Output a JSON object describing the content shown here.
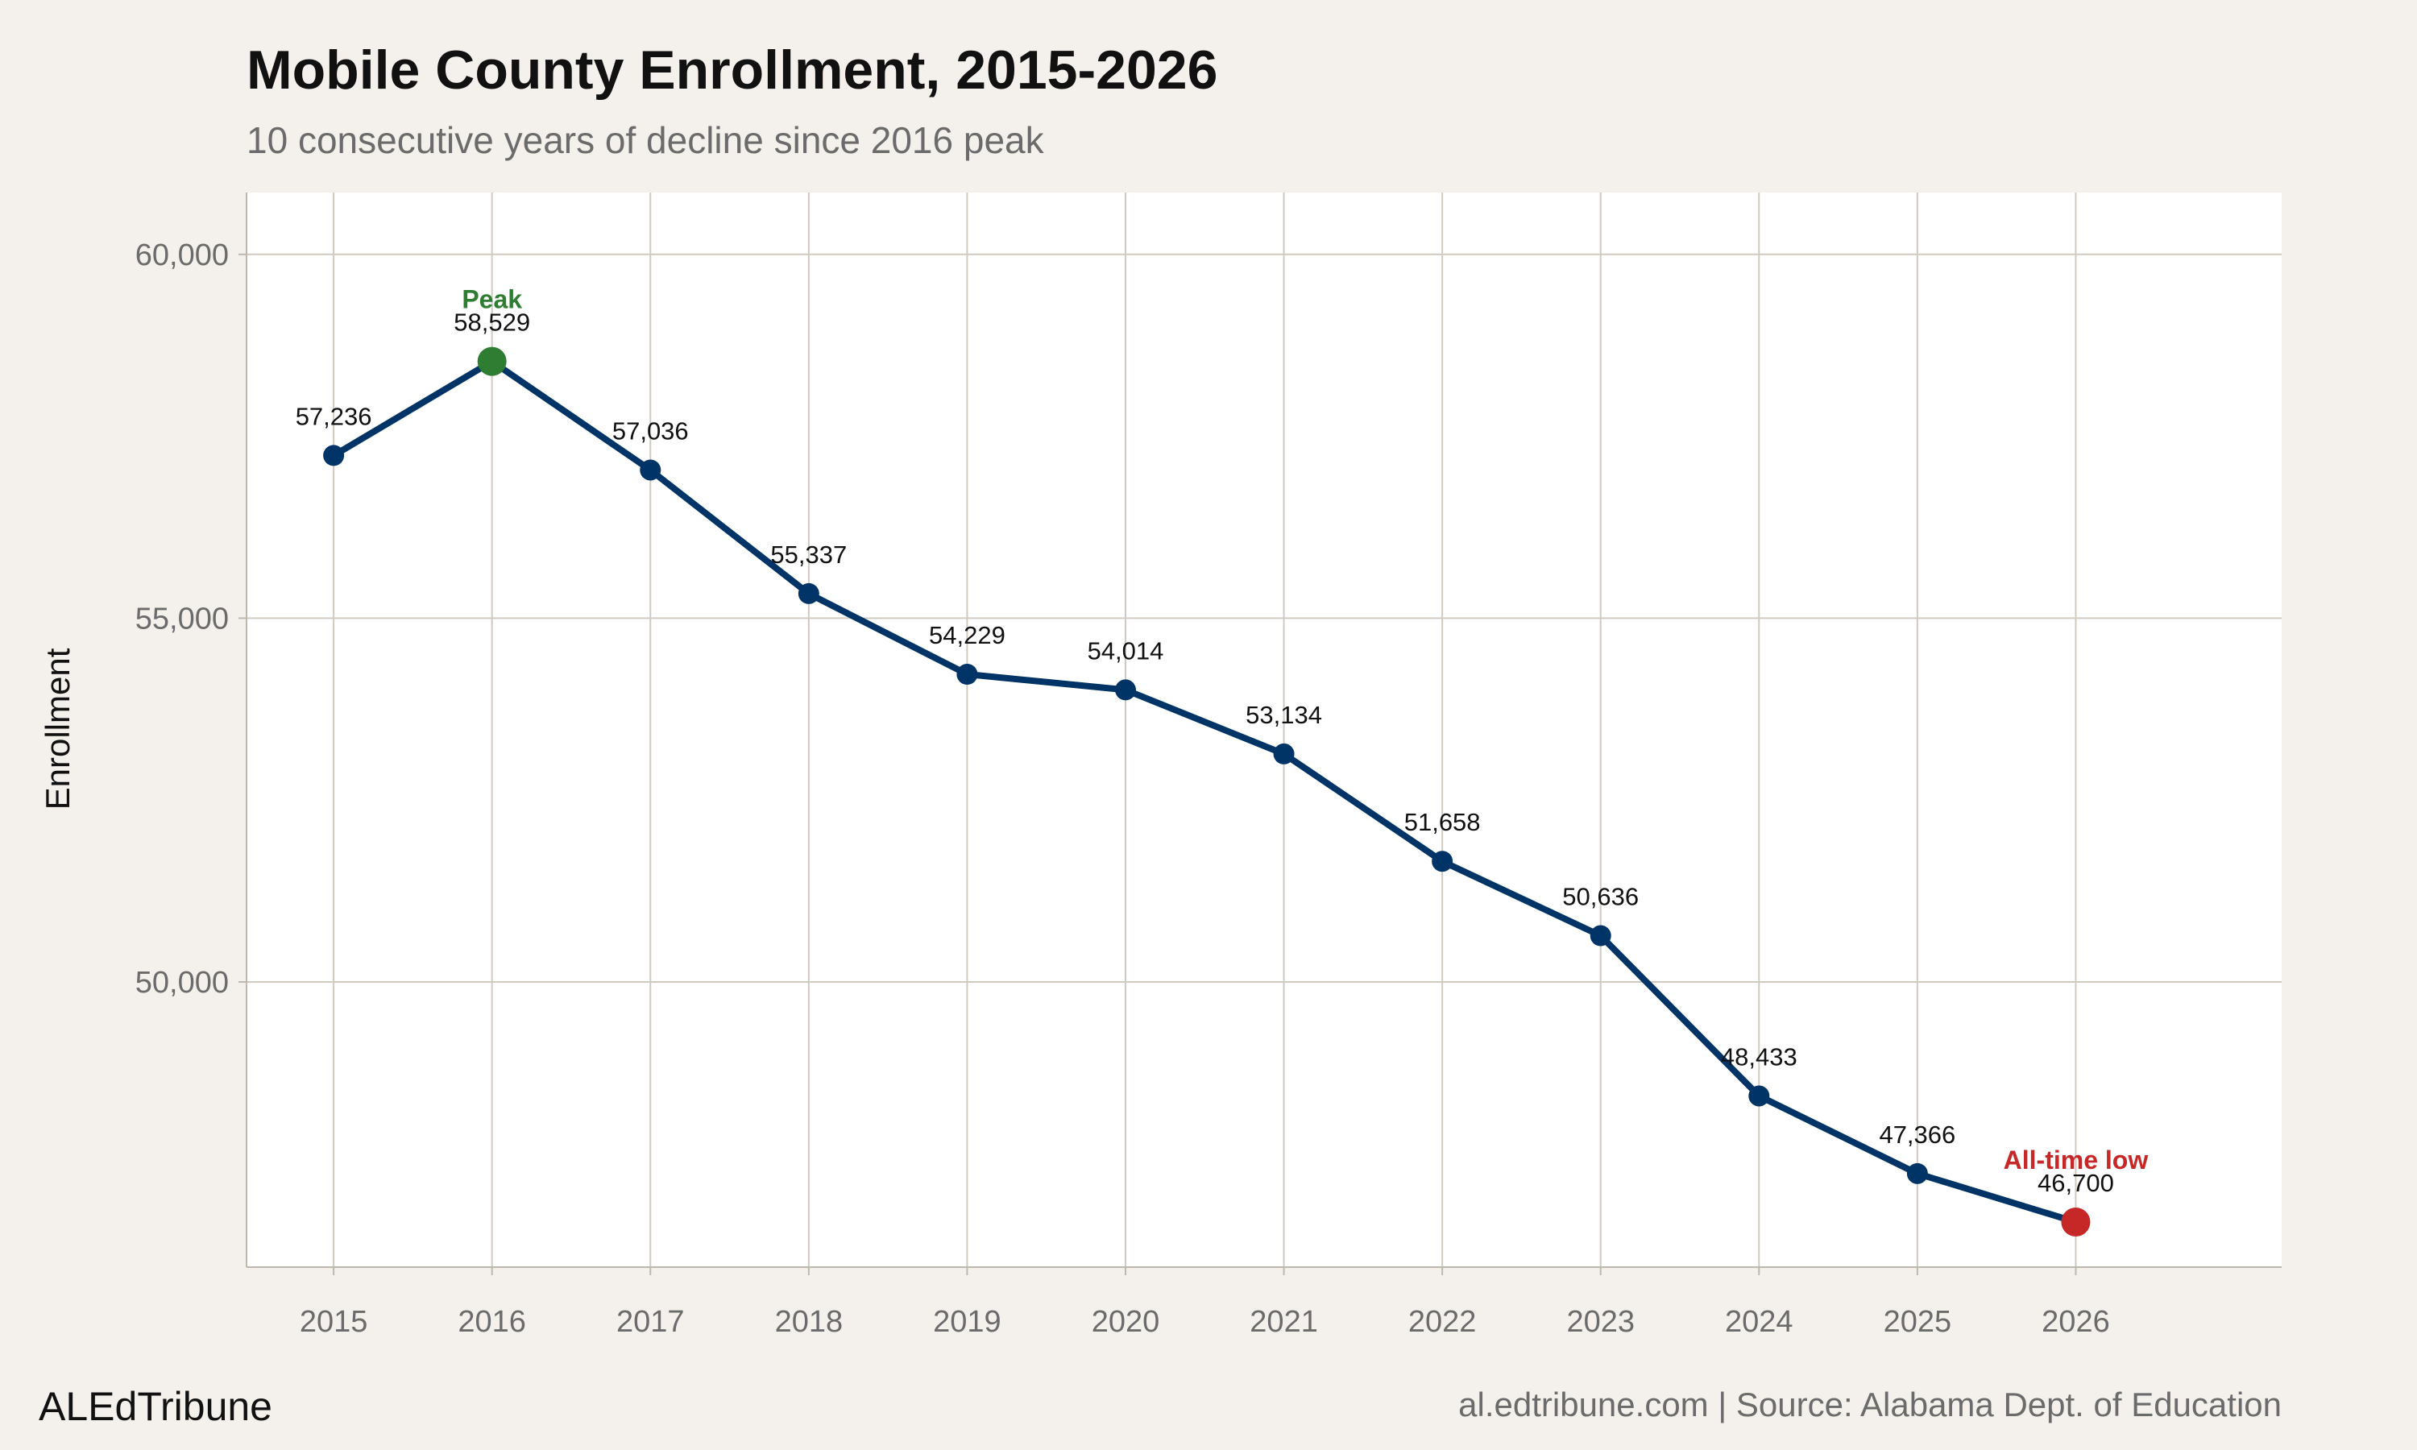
{
  "chart_data": {
    "type": "line",
    "title": "Mobile County Enrollment, 2015-2026",
    "subtitle": "10 consecutive years of decline since 2016 peak",
    "xlabel": "",
    "ylabel": "Enrollment",
    "x": [
      2015,
      2016,
      2017,
      2018,
      2019,
      2020,
      2021,
      2022,
      2023,
      2024,
      2025,
      2026
    ],
    "values": [
      57236,
      58529,
      57036,
      55337,
      54229,
      54014,
      53134,
      51658,
      50636,
      48433,
      47366,
      46700
    ],
    "data_labels": [
      "57,236",
      "58,529",
      "57,036",
      "55,337",
      "54,229",
      "54,014",
      "53,134",
      "51,658",
      "50,636",
      "48,433",
      "47,366",
      "46,700"
    ],
    "x_ticks": [
      "2015",
      "2016",
      "2017",
      "2018",
      "2019",
      "2020",
      "2021",
      "2022",
      "2023",
      "2024",
      "2025",
      "2026"
    ],
    "y_ticks": [
      50000,
      55000,
      60000
    ],
    "y_tick_labels": [
      "50,000",
      "55,000",
      "60,000"
    ],
    "ylim": [
      46080,
      60850
    ],
    "xlim": [
      2014.45,
      2027.3
    ],
    "grid": true,
    "annotations": [
      {
        "text": "Peak",
        "x": 2016,
        "color": "#2e7d32"
      },
      {
        "text": "All-time low",
        "x": 2026,
        "color": "#c62828"
      }
    ],
    "colors": {
      "line": "#003366",
      "peak": "#2e7d32",
      "low": "#c62828",
      "background": "#f4f1ec",
      "panel": "#ffffff",
      "grid": "#cfc9c0"
    }
  },
  "footer": {
    "brand": "ALEdTribune",
    "source": "al.edtribune.com | Source: Alabama Dept. of Education"
  }
}
